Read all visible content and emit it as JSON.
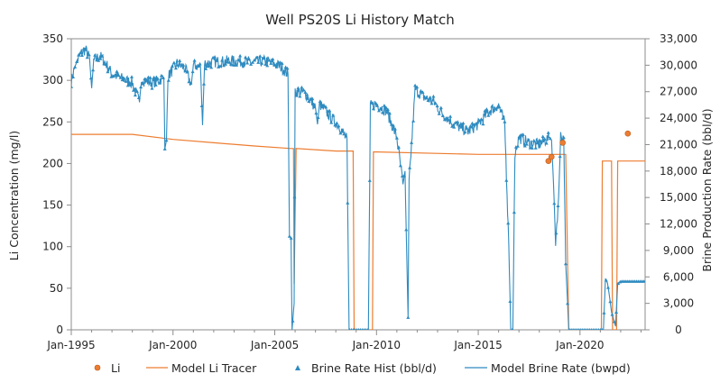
{
  "chart_data": {
    "type": "line",
    "title": "Well PS20S Li History Match",
    "xlabel": "",
    "ylabel": "Li Concentration (mg/l)",
    "y2label": "Brine Production Rate (bbl/d)",
    "xlim": [
      1995.0,
      2023.2
    ],
    "ylim": [
      0,
      350
    ],
    "y2lim": [
      0,
      33000
    ],
    "x_ticks": [
      {
        "value": 1995,
        "label": "Jan-1995"
      },
      {
        "value": 2000,
        "label": "Jan-2000"
      },
      {
        "value": 2005,
        "label": "Jan-2005"
      },
      {
        "value": 2010,
        "label": "Jan-2010"
      },
      {
        "value": 2015,
        "label": "Jan-2015"
      },
      {
        "value": 2020,
        "label": "Jan-2020"
      }
    ],
    "y_ticks": [
      0,
      50,
      100,
      150,
      200,
      250,
      300,
      350
    ],
    "y2_ticks": [
      "0",
      "3,000",
      "6,000",
      "9,000",
      "12,000",
      "15,000",
      "18,000",
      "21,000",
      "24,000",
      "27,000",
      "30,000",
      "33,000"
    ],
    "y2_tick_values": [
      0,
      3000,
      6000,
      9000,
      12000,
      15000,
      18000,
      21000,
      24000,
      27000,
      30000,
      33000
    ],
    "colors": {
      "orange": "#ED7D31",
      "blue": "#2E8BC0",
      "axis": "#8c8c8c"
    },
    "legend": [
      {
        "label": "Li",
        "kind": "dot"
      },
      {
        "label": "Model Li Tracer",
        "kind": "line-orange"
      },
      {
        "label": "Brine Rate Hist (bbl/d)",
        "kind": "triangle"
      },
      {
        "label": "Model Brine Rate (bwpd)",
        "kind": "line-blue"
      }
    ],
    "li_points": [
      {
        "x": 2018.45,
        "y": 203
      },
      {
        "x": 2018.6,
        "y": 208
      },
      {
        "x": 2019.15,
        "y": 225
      },
      {
        "x": 2022.35,
        "y": 236
      }
    ],
    "model_li_tracer": [
      [
        1995.0,
        235
      ],
      [
        1998.0,
        235
      ],
      [
        2000.0,
        229
      ],
      [
        2002.0,
        225
      ],
      [
        2004.0,
        221
      ],
      [
        2005.8,
        218
      ],
      [
        2005.92,
        218
      ],
      [
        2005.95,
        55
      ],
      [
        2006.05,
        218
      ],
      [
        2008.0,
        215
      ],
      [
        2008.85,
        215
      ],
      [
        2008.9,
        0
      ],
      [
        2009.8,
        0
      ],
      [
        2009.85,
        214
      ],
      [
        2015.0,
        211
      ],
      [
        2019.3,
        211
      ],
      [
        2019.45,
        0
      ],
      [
        2021.05,
        0
      ],
      [
        2021.1,
        203
      ],
      [
        2021.55,
        203
      ],
      [
        2021.6,
        0
      ],
      [
        2021.8,
        0
      ],
      [
        2021.85,
        203
      ],
      [
        2023.2,
        203
      ]
    ],
    "model_brine_rate": [
      [
        1995.0,
        28200
      ],
      [
        1995.15,
        29600
      ],
      [
        1995.3,
        30600
      ],
      [
        1995.5,
        31400
      ],
      [
        1995.7,
        31800
      ],
      [
        1995.9,
        30800
      ],
      [
        1996.0,
        27400
      ],
      [
        1996.1,
        30500
      ],
      [
        1996.4,
        31100
      ],
      [
        1996.7,
        30200
      ],
      [
        1997.0,
        29000
      ],
      [
        1997.6,
        28400
      ],
      [
        1998.0,
        28000
      ],
      [
        1998.35,
        25800
      ],
      [
        1998.45,
        28400
      ],
      [
        1999.0,
        28000
      ],
      [
        1999.55,
        28600
      ],
      [
        1999.6,
        20500
      ],
      [
        1999.68,
        21500
      ],
      [
        1999.75,
        28700
      ],
      [
        2000.2,
        30200
      ],
      [
        2000.6,
        29600
      ],
      [
        2000.9,
        27800
      ],
      [
        2001.0,
        30000
      ],
      [
        2001.35,
        29800
      ],
      [
        2001.45,
        23200
      ],
      [
        2001.55,
        30200
      ],
      [
        2002.2,
        30400
      ],
      [
        2003.0,
        30500
      ],
      [
        2003.8,
        30300
      ],
      [
        2004.6,
        30500
      ],
      [
        2005.3,
        29800
      ],
      [
        2005.65,
        29000
      ],
      [
        2005.72,
        10600
      ],
      [
        2005.8,
        10400
      ],
      [
        2005.85,
        0
      ],
      [
        2005.95,
        3000
      ],
      [
        2006.0,
        27100
      ],
      [
        2006.5,
        26800
      ],
      [
        2007.0,
        25200
      ],
      [
        2007.1,
        23300
      ],
      [
        2007.2,
        25600
      ],
      [
        2007.6,
        24500
      ],
      [
        2008.2,
        23000
      ],
      [
        2008.55,
        21600
      ],
      [
        2008.65,
        0
      ],
      [
        2009.6,
        0
      ],
      [
        2009.7,
        25400
      ],
      [
        2010.0,
        25600
      ],
      [
        2010.5,
        24800
      ],
      [
        2011.0,
        21800
      ],
      [
        2011.3,
        16500
      ],
      [
        2011.4,
        18000
      ],
      [
        2011.55,
        1400
      ],
      [
        2011.6,
        16700
      ],
      [
        2011.9,
        27300
      ],
      [
        2012.3,
        26400
      ],
      [
        2012.8,
        25900
      ],
      [
        2013.2,
        24600
      ],
      [
        2013.9,
        23200
      ],
      [
        2014.5,
        22500
      ],
      [
        2015.0,
        23300
      ],
      [
        2015.5,
        24700
      ],
      [
        2016.0,
        25500
      ],
      [
        2016.3,
        23400
      ],
      [
        2016.5,
        9700
      ],
      [
        2016.6,
        0
      ],
      [
        2016.7,
        0
      ],
      [
        2016.8,
        20000
      ],
      [
        2017.0,
        21800
      ],
      [
        2017.5,
        21200
      ],
      [
        2018.0,
        21000
      ],
      [
        2018.5,
        21800
      ],
      [
        2018.6,
        21500
      ],
      [
        2018.7,
        16500
      ],
      [
        2018.8,
        10000
      ],
      [
        2018.95,
        15000
      ],
      [
        2019.05,
        22000
      ],
      [
        2019.2,
        21800
      ],
      [
        2019.3,
        7500
      ],
      [
        2019.45,
        0
      ],
      [
        2021.0,
        0
      ],
      [
        2021.15,
        0
      ],
      [
        2021.25,
        5800
      ],
      [
        2021.35,
        5300
      ],
      [
        2021.45,
        3800
      ],
      [
        2021.55,
        2000
      ],
      [
        2021.65,
        1200
      ],
      [
        2021.75,
        400
      ],
      [
        2021.85,
        5200
      ],
      [
        2022.0,
        5500
      ],
      [
        2022.5,
        5500
      ],
      [
        2023.2,
        5500
      ]
    ]
  }
}
